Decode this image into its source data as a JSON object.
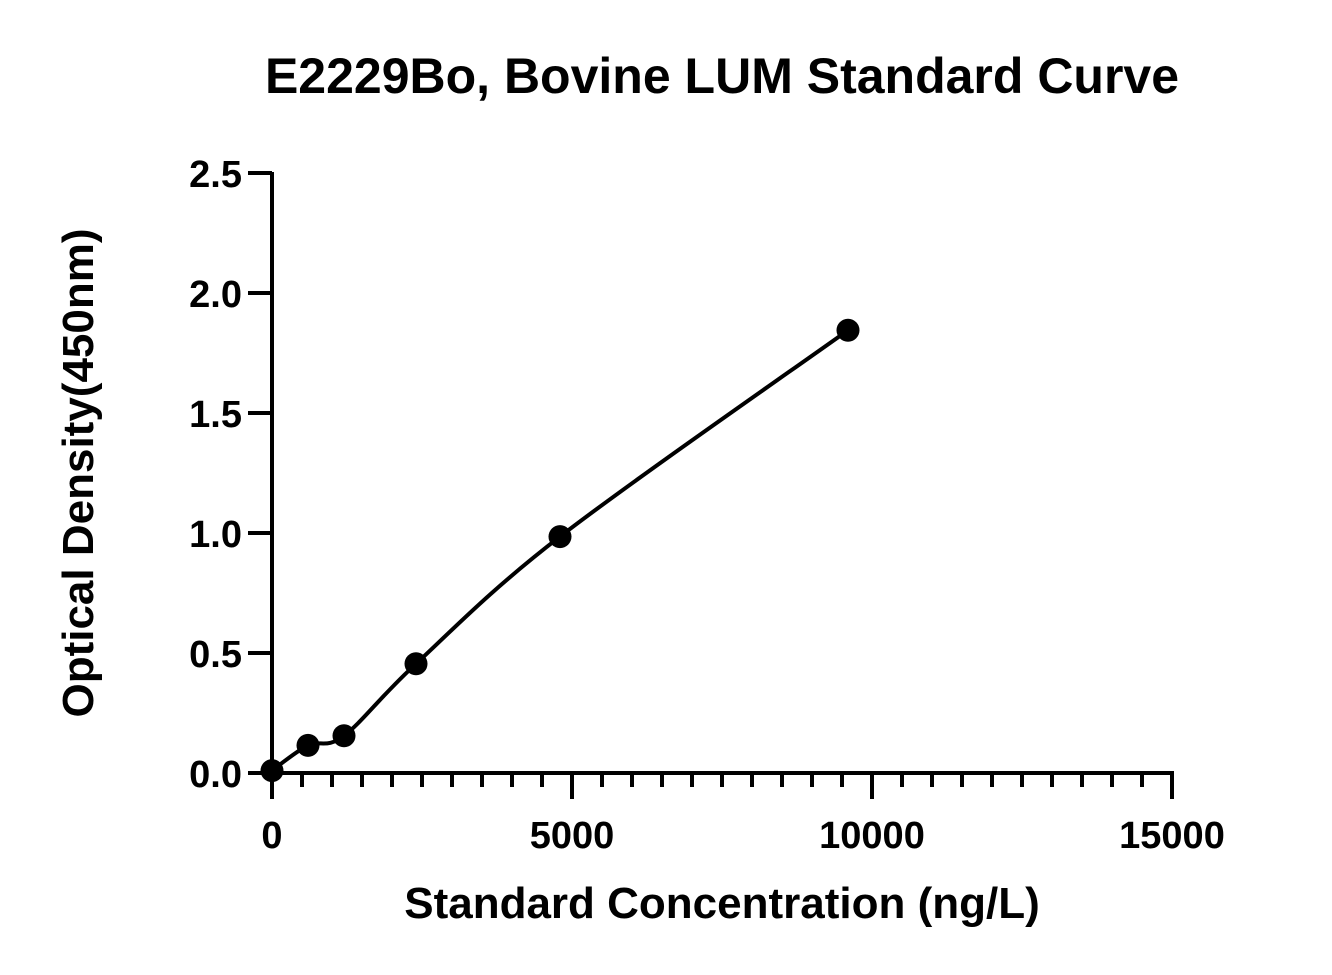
{
  "chart_data": {
    "type": "scatter",
    "title": "E2229Bo, Bovine LUM Standard Curve",
    "xlabel": "Standard Concentration (ng/L)",
    "ylabel": "Optical Density(450nm)",
    "xlim": [
      0,
      15000
    ],
    "ylim": [
      0,
      2.5
    ],
    "x_ticks": [
      0,
      5000,
      10000,
      15000
    ],
    "x_tick_labels": [
      "0",
      "5000",
      "10000",
      "15000"
    ],
    "x_minor_step": 500,
    "y_ticks": [
      0,
      0.5,
      1.0,
      1.5,
      2.0,
      2.5
    ],
    "y_tick_labels": [
      "0.0",
      "0.5",
      "1.0",
      "1.5",
      "2.0",
      "2.5"
    ],
    "grid": false,
    "legend": "none",
    "series": [
      {
        "x": [
          0,
          600,
          1200,
          2400,
          4800,
          9600
        ],
        "y": [
          0.01,
          0.115,
          0.155,
          0.455,
          0.985,
          1.845
        ],
        "fit": "smooth curve"
      }
    ]
  }
}
